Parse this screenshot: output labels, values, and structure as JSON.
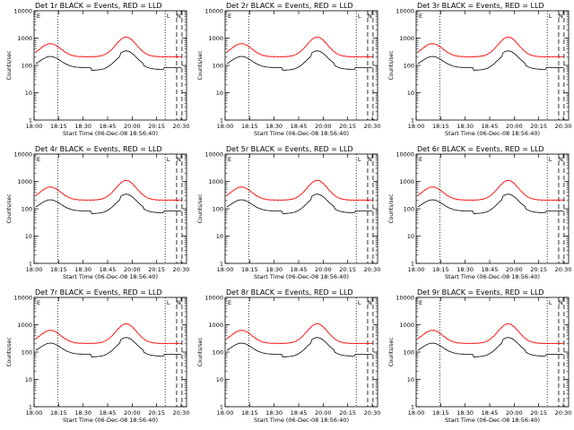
{
  "colors": {
    "events": "#000000",
    "lld": "#ff0000",
    "background": "#ffffff"
  },
  "chart_data": [
    {
      "type": "line",
      "title": "Det 1r BLACK = Events, RED = LLD",
      "xlabel": "Start Time (06-Dec-08 18:56:40)",
      "ylabel": "Counts/sec",
      "yscale": "log",
      "ylim": [
        1,
        10000
      ],
      "xlim": [
        "18:00",
        "20:35"
      ],
      "xticks": [
        "18:00",
        "18:15",
        "18:30",
        "18:45",
        "20:00",
        "20:15",
        "20:30"
      ],
      "yticks": [
        "1",
        "10",
        "100",
        "1000",
        "10000"
      ],
      "corner_labels": [
        "E",
        "L",
        "N"
      ]
    },
    {
      "type": "line",
      "title": "Det 2r BLACK = Events, RED = LLD",
      "xlabel": "Start Time (06-Dec-08 18:56:40)",
      "ylabel": "Counts/sec",
      "yscale": "log",
      "ylim": [
        1,
        10000
      ],
      "xlim": [
        "18:00",
        "20:35"
      ],
      "xticks": [
        "18:00",
        "18:15",
        "18:30",
        "18:45",
        "20:00",
        "20:15",
        "20:30"
      ],
      "yticks": [
        "1",
        "10",
        "100",
        "1000",
        "10000"
      ],
      "corner_labels": [
        "E",
        "L",
        "N"
      ]
    },
    {
      "type": "line",
      "title": "Det 3r BLACK = Events, RED = LLD",
      "xlabel": "Start Time (06-Dec-08 18:56:40)",
      "ylabel": "Counts/sec",
      "yscale": "log",
      "ylim": [
        1,
        10000
      ],
      "xlim": [
        "18:00",
        "20:35"
      ],
      "xticks": [
        "18:00",
        "18:15",
        "18:30",
        "18:45",
        "20:00",
        "20:15",
        "20:30"
      ],
      "yticks": [
        "1",
        "10",
        "100",
        "1000",
        "10000"
      ],
      "corner_labels": [
        "E",
        "L",
        "N"
      ]
    },
    {
      "type": "line",
      "title": "Det 4r BLACK = Events, RED = LLD",
      "xlabel": "Start Time (06-Dec-08 18:56:40)",
      "ylabel": "Counts/sec",
      "yscale": "log",
      "ylim": [
        1,
        10000
      ],
      "xlim": [
        "18:00",
        "20:35"
      ],
      "xticks": [
        "18:00",
        "18:15",
        "18:30",
        "18:45",
        "20:00",
        "20:15",
        "20:30"
      ],
      "yticks": [
        "1",
        "10",
        "100",
        "1000",
        "10000"
      ],
      "corner_labels": [
        "E",
        "L",
        "N"
      ]
    },
    {
      "type": "line",
      "title": "Det 5r BLACK = Events, RED = LLD",
      "xlabel": "Start Time (06-Dec-08 18:56:40)",
      "ylabel": "Counts/sec",
      "yscale": "log",
      "ylim": [
        1,
        10000
      ],
      "xlim": [
        "18:00",
        "20:35"
      ],
      "xticks": [
        "18:00",
        "18:15",
        "18:30",
        "18:45",
        "20:00",
        "20:15",
        "20:30"
      ],
      "yticks": [
        "1",
        "10",
        "100",
        "1000",
        "10000"
      ],
      "corner_labels": [
        "E",
        "L",
        "N"
      ]
    },
    {
      "type": "line",
      "title": "Det 6r BLACK = Events, RED = LLD",
      "xlabel": "Start Time (06-Dec-08 18:56:40)",
      "ylabel": "Counts/sec",
      "yscale": "log",
      "ylim": [
        1,
        10000
      ],
      "xlim": [
        "18:00",
        "20:35"
      ],
      "xticks": [
        "18:00",
        "18:15",
        "18:30",
        "18:45",
        "20:00",
        "20:15",
        "20:30"
      ],
      "yticks": [
        "1",
        "10",
        "100",
        "1000",
        "10000"
      ],
      "corner_labels": [
        "E",
        "L",
        "N"
      ]
    },
    {
      "type": "line",
      "title": "Det 7r BLACK = Events, RED = LLD",
      "xlabel": "Start Time (06-Dec-08 18:56:40)",
      "ylabel": "Counts/sec",
      "yscale": "log",
      "ylim": [
        1,
        10000
      ],
      "xlim": [
        "18:00",
        "20:35"
      ],
      "xticks": [
        "18:00",
        "18:15",
        "18:30",
        "18:45",
        "20:00",
        "20:15",
        "20:30"
      ],
      "yticks": [
        "1",
        "10",
        "100",
        "1000",
        "10000"
      ],
      "corner_labels": [
        "E",
        "L",
        "N"
      ]
    },
    {
      "type": "line",
      "title": "Det 8r BLACK = Events, RED = LLD",
      "xlabel": "Start Time (06-Dec-08 18:56:40)",
      "ylabel": "Counts/sec",
      "yscale": "log",
      "ylim": [
        1,
        10000
      ],
      "xlim": [
        "18:00",
        "20:35"
      ],
      "xticks": [
        "18:00",
        "18:15",
        "18:30",
        "18:45",
        "20:00",
        "20:15",
        "20:30"
      ],
      "yticks": [
        "1",
        "10",
        "100",
        "1000",
        "10000"
      ],
      "corner_labels": [
        "E",
        "L",
        "N"
      ]
    },
    {
      "type": "line",
      "title": "Det 9r BLACK = Events, RED = LLD",
      "xlabel": "Start Time (06-Dec-08 18:56:40)",
      "ylabel": "Counts/sec",
      "yscale": "log",
      "ylim": [
        1,
        10000
      ],
      "xlim": [
        "18:00",
        "20:35"
      ],
      "xticks": [
        "18:00",
        "18:15",
        "18:30",
        "18:45",
        "20:00",
        "20:15",
        "20:30"
      ],
      "yticks": [
        "1",
        "10",
        "100",
        "1000",
        "10000"
      ],
      "corner_labels": [
        "E",
        "L",
        "N"
      ]
    }
  ]
}
